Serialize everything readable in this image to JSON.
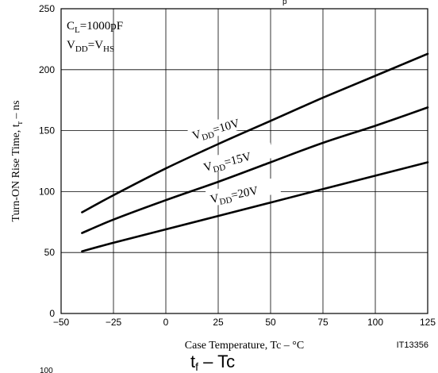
{
  "chart_data": {
    "type": "line",
    "title": "",
    "xlabel": "Case Temperature, Tc  –  °C",
    "ylabel": "Turn-ON Rise Time, tr  –  ns",
    "xlim": [
      -50,
      125
    ],
    "ylim": [
      0,
      250
    ],
    "xticks": [
      -50,
      -25,
      0,
      25,
      50,
      75,
      100,
      125
    ],
    "yticks": [
      0,
      50,
      100,
      150,
      200,
      250
    ],
    "grid": true,
    "legend": "none",
    "series": [
      {
        "name": "VDD=10V",
        "x": [
          -40,
          -25,
          0,
          25,
          50,
          75,
          100,
          125
        ],
        "y": [
          83,
          97,
          119,
          139,
          158,
          177,
          195,
          213
        ]
      },
      {
        "name": "VDD=15V",
        "x": [
          -40,
          -25,
          0,
          25,
          50,
          75,
          100,
          125
        ],
        "y": [
          66,
          77,
          93,
          108,
          124,
          140,
          154,
          169
        ]
      },
      {
        "name": "VDD=20V",
        "x": [
          -40,
          -25,
          0,
          25,
          50,
          75,
          100,
          125
        ],
        "y": [
          51,
          58,
          69,
          80,
          91,
          102,
          113,
          124
        ]
      }
    ]
  },
  "annotations": {
    "conditions_line1": "CL=1000pF",
    "conditions_line2": "VDD=VHS",
    "figure_code": "IT13356",
    "next_figure_caption": "tf  –  Tc",
    "next_figure_tick": "100"
  }
}
